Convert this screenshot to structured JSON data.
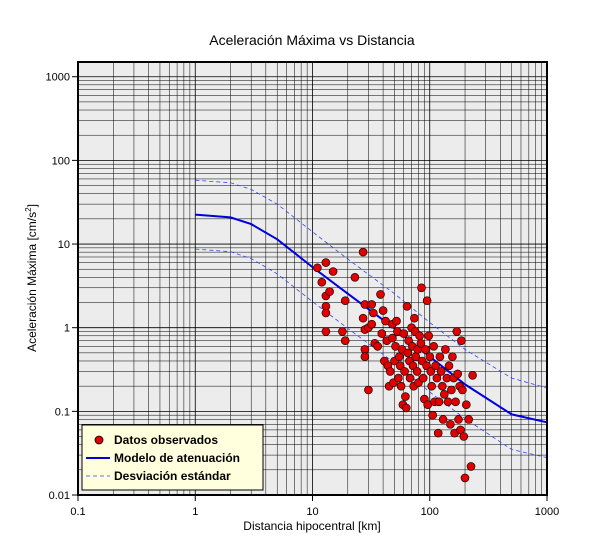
{
  "chart_data": {
    "type": "scatter",
    "title": "Aceleración Máxima vs Distancia",
    "xlabel": "Distancia hipocentral [km]",
    "ylabel_base": "Aceleración Máxima [cm/s",
    "ylabel_sup": "2",
    "ylabel_end": "]",
    "x_scale": "log",
    "y_scale": "log",
    "xlim": [
      0.1,
      1000
    ],
    "ylim": [
      0.01,
      1500
    ],
    "grid": true,
    "legend_position": "bottom-left",
    "x_ticks": [
      {
        "value": 0.1,
        "label": "0.1"
      },
      {
        "value": 1,
        "label": "1"
      },
      {
        "value": 10,
        "label": "10"
      },
      {
        "value": 100,
        "label": "100"
      },
      {
        "value": 1000,
        "label": "1000"
      }
    ],
    "y_ticks": [
      {
        "value": 0.01,
        "label": "0.01"
      },
      {
        "value": 0.1,
        "label": "0.1"
      },
      {
        "value": 1,
        "label": "1"
      },
      {
        "value": 10,
        "label": "10"
      },
      {
        "value": 100,
        "label": "100"
      },
      {
        "value": 1000,
        "label": "1000"
      }
    ],
    "series": [
      {
        "name": "Datos observados",
        "kind": "scatter",
        "color": "#e00000",
        "points": [
          [
            11,
            5.2
          ],
          [
            12,
            3.5
          ],
          [
            13,
            6
          ],
          [
            13,
            2.4
          ],
          [
            14,
            2.7
          ],
          [
            13,
            1.8
          ],
          [
            13,
            1.5
          ],
          [
            13,
            0.9
          ],
          [
            15,
            4.7
          ],
          [
            18,
            0.9
          ],
          [
            19,
            2.1
          ],
          [
            19,
            0.7
          ],
          [
            23,
            4.0
          ],
          [
            27,
            8.0
          ],
          [
            27,
            1.3
          ],
          [
            28,
            1.9
          ],
          [
            28,
            0.95
          ],
          [
            28,
            0.55
          ],
          [
            28,
            0.45
          ],
          [
            30,
            1.0
          ],
          [
            30,
            0.18
          ],
          [
            32,
            1.9
          ],
          [
            32,
            1.1
          ],
          [
            33,
            1.5
          ],
          [
            34,
            0.65
          ],
          [
            36,
            0.6
          ],
          [
            38,
            2.5
          ],
          [
            39,
            0.85
          ],
          [
            40,
            1.6
          ],
          [
            41,
            0.4
          ],
          [
            42,
            1.2
          ],
          [
            43,
            0.7
          ],
          [
            44,
            0.35
          ],
          [
            45,
            0.2
          ],
          [
            46,
            0.3
          ],
          [
            48,
            1.1
          ],
          [
            48,
            0.75
          ],
          [
            49,
            0.22
          ],
          [
            50,
            0.4
          ],
          [
            51,
            0.6
          ],
          [
            52,
            1.2
          ],
          [
            53,
            0.9
          ],
          [
            54,
            0.25
          ],
          [
            55,
            0.45
          ],
          [
            56,
            0.35
          ],
          [
            57,
            0.2
          ],
          [
            58,
            0.55
          ],
          [
            59,
            0.12
          ],
          [
            60,
            0.85
          ],
          [
            61,
            0.3
          ],
          [
            62,
            0.15
          ],
          [
            63,
            0.11
          ],
          [
            64,
            1.8
          ],
          [
            65,
            0.5
          ],
          [
            66,
            0.7
          ],
          [
            67,
            0.4
          ],
          [
            68,
            0.25
          ],
          [
            70,
            1.0
          ],
          [
            71,
            0.6
          ],
          [
            72,
            0.35
          ],
          [
            73,
            0.2
          ],
          [
            74,
            1.3
          ],
          [
            75,
            0.9
          ],
          [
            76,
            0.45
          ],
          [
            78,
            0.3
          ],
          [
            79,
            0.55
          ],
          [
            80,
            0.22
          ],
          [
            82,
            0.8
          ],
          [
            84,
            0.65
          ],
          [
            85,
            3.0
          ],
          [
            86,
            0.4
          ],
          [
            88,
            0.25
          ],
          [
            90,
            0.14
          ],
          [
            92,
            0.55
          ],
          [
            94,
            0.35
          ],
          [
            95,
            2.1
          ],
          [
            96,
            0.12
          ],
          [
            98,
            0.8
          ],
          [
            100,
            0.45
          ],
          [
            102,
            0.3
          ],
          [
            104,
            0.2
          ],
          [
            106,
            0.09
          ],
          [
            108,
            0.6
          ],
          [
            110,
            0.13
          ],
          [
            112,
            0.35
          ],
          [
            115,
            0.25
          ],
          [
            118,
            0.055
          ],
          [
            120,
            0.13
          ],
          [
            122,
            0.45
          ],
          [
            125,
            0.3
          ],
          [
            128,
            0.2
          ],
          [
            130,
            0.08
          ],
          [
            133,
            0.16
          ],
          [
            136,
            0.55
          ],
          [
            140,
            0.25
          ],
          [
            143,
            0.13
          ],
          [
            146,
            0.35
          ],
          [
            150,
            0.07
          ],
          [
            153,
            0.18
          ],
          [
            156,
            0.45
          ],
          [
            160,
            0.25
          ],
          [
            163,
            0.055
          ],
          [
            166,
            0.13
          ],
          [
            170,
            0.9
          ],
          [
            173,
            0.28
          ],
          [
            176,
            0.08
          ],
          [
            180,
            0.2
          ],
          [
            183,
            0.06
          ],
          [
            186,
            0.7
          ],
          [
            190,
            0.18
          ],
          [
            195,
            0.05
          ],
          [
            200,
            0.016
          ],
          [
            205,
            0.12
          ],
          [
            215,
            0.08
          ],
          [
            225,
            0.022
          ],
          [
            232,
            0.27
          ]
        ]
      },
      {
        "name": "Modelo de atenuación",
        "kind": "line",
        "color": "#0000dd",
        "points": [
          [
            1,
            22.5
          ],
          [
            2,
            20.8
          ],
          [
            3,
            17.3
          ],
          [
            5,
            11.4
          ],
          [
            10,
            5.3
          ],
          [
            20,
            2.55
          ],
          [
            50,
            0.98
          ],
          [
            100,
            0.45
          ],
          [
            200,
            0.21
          ],
          [
            500,
            0.092
          ],
          [
            1000,
            0.074
          ]
        ]
      },
      {
        "name": "Desviación estándar",
        "kind": "dashed",
        "color": "#3344ee",
        "points": [
          [
            1,
            58
          ],
          [
            2,
            54
          ],
          [
            3,
            45
          ],
          [
            5,
            30
          ],
          [
            10,
            14
          ],
          [
            20,
            6.6
          ],
          [
            50,
            2.55
          ],
          [
            100,
            1.15
          ],
          [
            200,
            0.55
          ],
          [
            500,
            0.25
          ],
          [
            1000,
            0.19
          ]
        ]
      },
      {
        "name": "",
        "kind": "dashed",
        "color": "#3344ee",
        "points": [
          [
            1,
            8.7
          ],
          [
            2,
            8.1
          ],
          [
            3,
            6.7
          ],
          [
            5,
            4.4
          ],
          [
            10,
            2.05
          ],
          [
            20,
            0.98
          ],
          [
            50,
            0.38
          ],
          [
            100,
            0.17
          ],
          [
            200,
            0.082
          ],
          [
            500,
            0.035
          ],
          [
            1000,
            0.028
          ]
        ]
      }
    ],
    "legend": {
      "items": [
        {
          "label": "Datos observados",
          "symbol": "marker",
          "color": "#e00000"
        },
        {
          "label": "Modelo de atenuación",
          "symbol": "line",
          "color": "#0000dd"
        },
        {
          "label": "Desviación estándar",
          "symbol": "dashed",
          "color": "#3344ee"
        }
      ],
      "background": "#ffffdd"
    },
    "colors": {
      "plot_background": "#ececec",
      "grid": "#000000",
      "frame": "#000000"
    }
  }
}
